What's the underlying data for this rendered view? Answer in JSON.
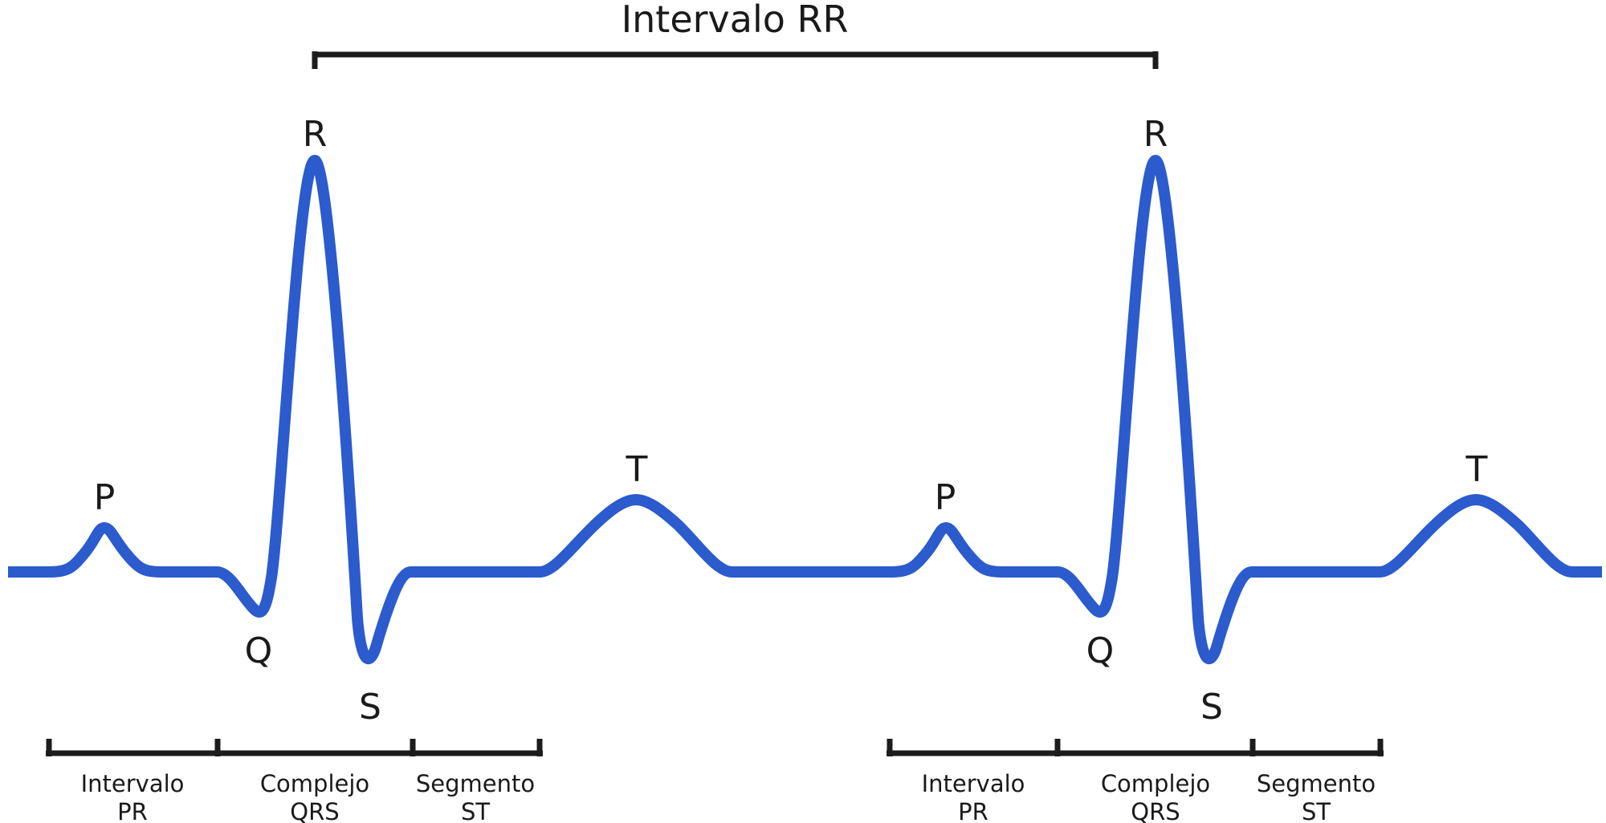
{
  "rr_interval": {
    "label": "Intervalo RR"
  },
  "wave_color": "#2b5bcc",
  "bar_color": "#1c1c1c",
  "beats": [
    {
      "peaks": {
        "P": "P",
        "Q": "Q",
        "R": "R",
        "S": "S",
        "T": "T"
      },
      "segments": [
        {
          "line1": "Intervalo",
          "line2": "PR"
        },
        {
          "line1": "Complejo",
          "line2": "QRS"
        },
        {
          "line1": "Segmento",
          "line2": "ST"
        }
      ]
    },
    {
      "peaks": {
        "P": "P",
        "Q": "Q",
        "R": "R",
        "S": "S",
        "T": "T"
      },
      "segments": [
        {
          "line1": "Intervalo",
          "line2": "PR"
        },
        {
          "line1": "Complejo",
          "line2": "QRS"
        },
        {
          "line1": "Segmento",
          "line2": "ST"
        }
      ]
    }
  ]
}
